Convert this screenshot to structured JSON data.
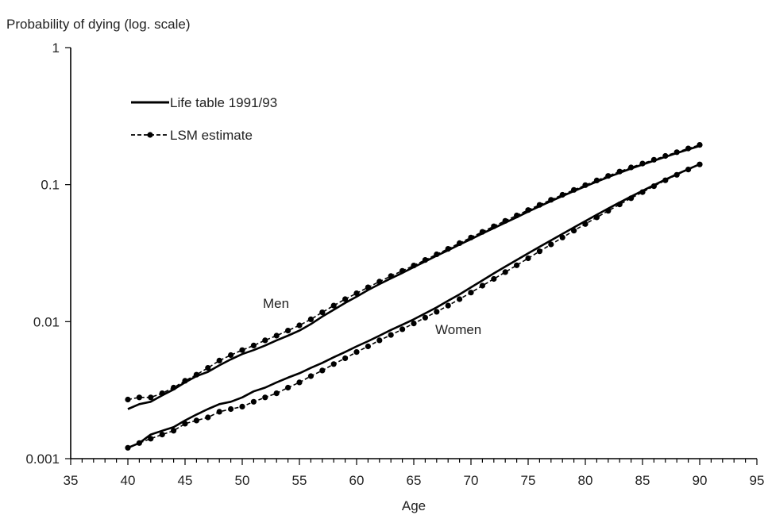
{
  "chart_data": {
    "type": "line",
    "title": "",
    "xlabel": "Age",
    "ylabel": "Probability of dying (log. scale)",
    "xlim": [
      35,
      95
    ],
    "ylim": [
      0.001,
      1
    ],
    "y_scale": "log",
    "x_ticks": [
      "35",
      "40",
      "45",
      "50",
      "55",
      "60",
      "65",
      "70",
      "75",
      "80",
      "85",
      "90",
      "95"
    ],
    "y_ticks": [
      "0.001",
      "0.01",
      "0.1",
      "1"
    ],
    "grid": false,
    "legend": {
      "position": "top-left",
      "entries": [
        {
          "label": "Life table 1991/93",
          "style": "solid"
        },
        {
          "label": "LSM estimate",
          "style": "dashed-dots"
        }
      ]
    },
    "annotations": [
      {
        "text": "Men",
        "x": 52.5,
        "y": 0.0145
      },
      {
        "text": "Women",
        "x": 69.5,
        "y": 0.006
      }
    ],
    "series": [
      {
        "group": "Men",
        "kind": "Life table 1991/93",
        "x": [
          40,
          41,
          42,
          43,
          44,
          45,
          46,
          47,
          48,
          49,
          50,
          51,
          52,
          53,
          54,
          55,
          56,
          57,
          58,
          59,
          60,
          61,
          62,
          63,
          64,
          65,
          66,
          67,
          68,
          69,
          70,
          71,
          72,
          73,
          74,
          75,
          76,
          77,
          78,
          79,
          80,
          81,
          82,
          83,
          84,
          85,
          86,
          87,
          88,
          89,
          90
        ],
        "y": [
          0.0023,
          0.0025,
          0.0026,
          0.0029,
          0.0032,
          0.0036,
          0.004,
          0.0043,
          0.0048,
          0.0053,
          0.0058,
          0.0062,
          0.0067,
          0.0073,
          0.0079,
          0.0086,
          0.0096,
          0.0109,
          0.0122,
          0.0137,
          0.0152,
          0.017,
          0.0188,
          0.0207,
          0.0227,
          0.025,
          0.0275,
          0.0303,
          0.0332,
          0.0365,
          0.04,
          0.044,
          0.0482,
          0.0528,
          0.0578,
          0.0635,
          0.0695,
          0.0758,
          0.0826,
          0.0897,
          0.0972,
          0.1052,
          0.1135,
          0.122,
          0.131,
          0.14,
          0.1495,
          0.1595,
          0.17,
          0.1805,
          0.1915
        ]
      },
      {
        "group": "Men",
        "kind": "LSM estimate",
        "x": [
          40,
          41,
          42,
          43,
          44,
          45,
          46,
          47,
          48,
          49,
          50,
          51,
          52,
          53,
          54,
          55,
          56,
          57,
          58,
          59,
          60,
          61,
          62,
          63,
          64,
          65,
          66,
          67,
          68,
          69,
          70,
          71,
          72,
          73,
          74,
          75,
          76,
          77,
          78,
          79,
          80,
          81,
          82,
          83,
          84,
          85,
          86,
          87,
          88,
          89,
          90
        ],
        "y": [
          0.0027,
          0.0028,
          0.0028,
          0.003,
          0.0033,
          0.0037,
          0.0041,
          0.0046,
          0.0052,
          0.0057,
          0.0062,
          0.0067,
          0.0073,
          0.0079,
          0.0086,
          0.0094,
          0.0104,
          0.0117,
          0.0131,
          0.0146,
          0.0161,
          0.0178,
          0.0196,
          0.0215,
          0.0235,
          0.0257,
          0.0282,
          0.031,
          0.034,
          0.0374,
          0.0411,
          0.0452,
          0.0496,
          0.0544,
          0.0596,
          0.0652,
          0.0711,
          0.0775,
          0.0843,
          0.0915,
          0.0992,
          0.1073,
          0.1158,
          0.1245,
          0.1335,
          0.1425,
          0.152,
          0.162,
          0.1725,
          0.1835,
          0.195
        ]
      },
      {
        "group": "Women",
        "kind": "Life table 1991/93",
        "x": [
          40,
          41,
          42,
          43,
          44,
          45,
          46,
          47,
          48,
          49,
          50,
          51,
          52,
          53,
          54,
          55,
          56,
          57,
          58,
          59,
          60,
          61,
          62,
          63,
          64,
          65,
          66,
          67,
          68,
          69,
          70,
          71,
          72,
          73,
          74,
          75,
          76,
          77,
          78,
          79,
          80,
          81,
          82,
          83,
          84,
          85,
          86,
          87,
          88,
          89,
          90
        ],
        "y": [
          0.0012,
          0.0013,
          0.0015,
          0.0016,
          0.0017,
          0.0019,
          0.0021,
          0.0023,
          0.0025,
          0.0026,
          0.0028,
          0.0031,
          0.0033,
          0.0036,
          0.0039,
          0.0042,
          0.0046,
          0.005,
          0.0055,
          0.006,
          0.0066,
          0.0072,
          0.0079,
          0.0087,
          0.0095,
          0.0104,
          0.0115,
          0.0127,
          0.0142,
          0.0158,
          0.0178,
          0.02,
          0.0225,
          0.0252,
          0.0282,
          0.0315,
          0.0352,
          0.0392,
          0.0437,
          0.0487,
          0.0542,
          0.0603,
          0.0669,
          0.0741,
          0.0818,
          0.0902,
          0.0992,
          0.1088,
          0.119,
          0.1297,
          0.141
        ]
      },
      {
        "group": "Women",
        "kind": "LSM estimate",
        "x": [
          40,
          41,
          42,
          43,
          44,
          45,
          46,
          47,
          48,
          49,
          50,
          51,
          52,
          53,
          54,
          55,
          56,
          57,
          58,
          59,
          60,
          61,
          62,
          63,
          64,
          65,
          66,
          67,
          68,
          69,
          70,
          71,
          72,
          73,
          74,
          75,
          76,
          77,
          78,
          79,
          80,
          81,
          82,
          83,
          84,
          85,
          86,
          87,
          88,
          89,
          90
        ],
        "y": [
          0.0012,
          0.0013,
          0.0014,
          0.0015,
          0.0016,
          0.0018,
          0.0019,
          0.002,
          0.0022,
          0.0023,
          0.0024,
          0.0026,
          0.0028,
          0.003,
          0.0033,
          0.0036,
          0.004,
          0.0044,
          0.0049,
          0.0054,
          0.006,
          0.0066,
          0.0073,
          0.008,
          0.0088,
          0.0097,
          0.0107,
          0.0118,
          0.0131,
          0.0146,
          0.0163,
          0.0183,
          0.0205,
          0.023,
          0.0258,
          0.029,
          0.0326,
          0.0366,
          0.0411,
          0.0461,
          0.0516,
          0.0577,
          0.0644,
          0.0717,
          0.0796,
          0.0882,
          0.0975,
          0.1075,
          0.118,
          0.129,
          0.1405
        ]
      }
    ]
  },
  "colors": {
    "line": "#000000",
    "text": "#222222",
    "background": "#ffffff"
  }
}
